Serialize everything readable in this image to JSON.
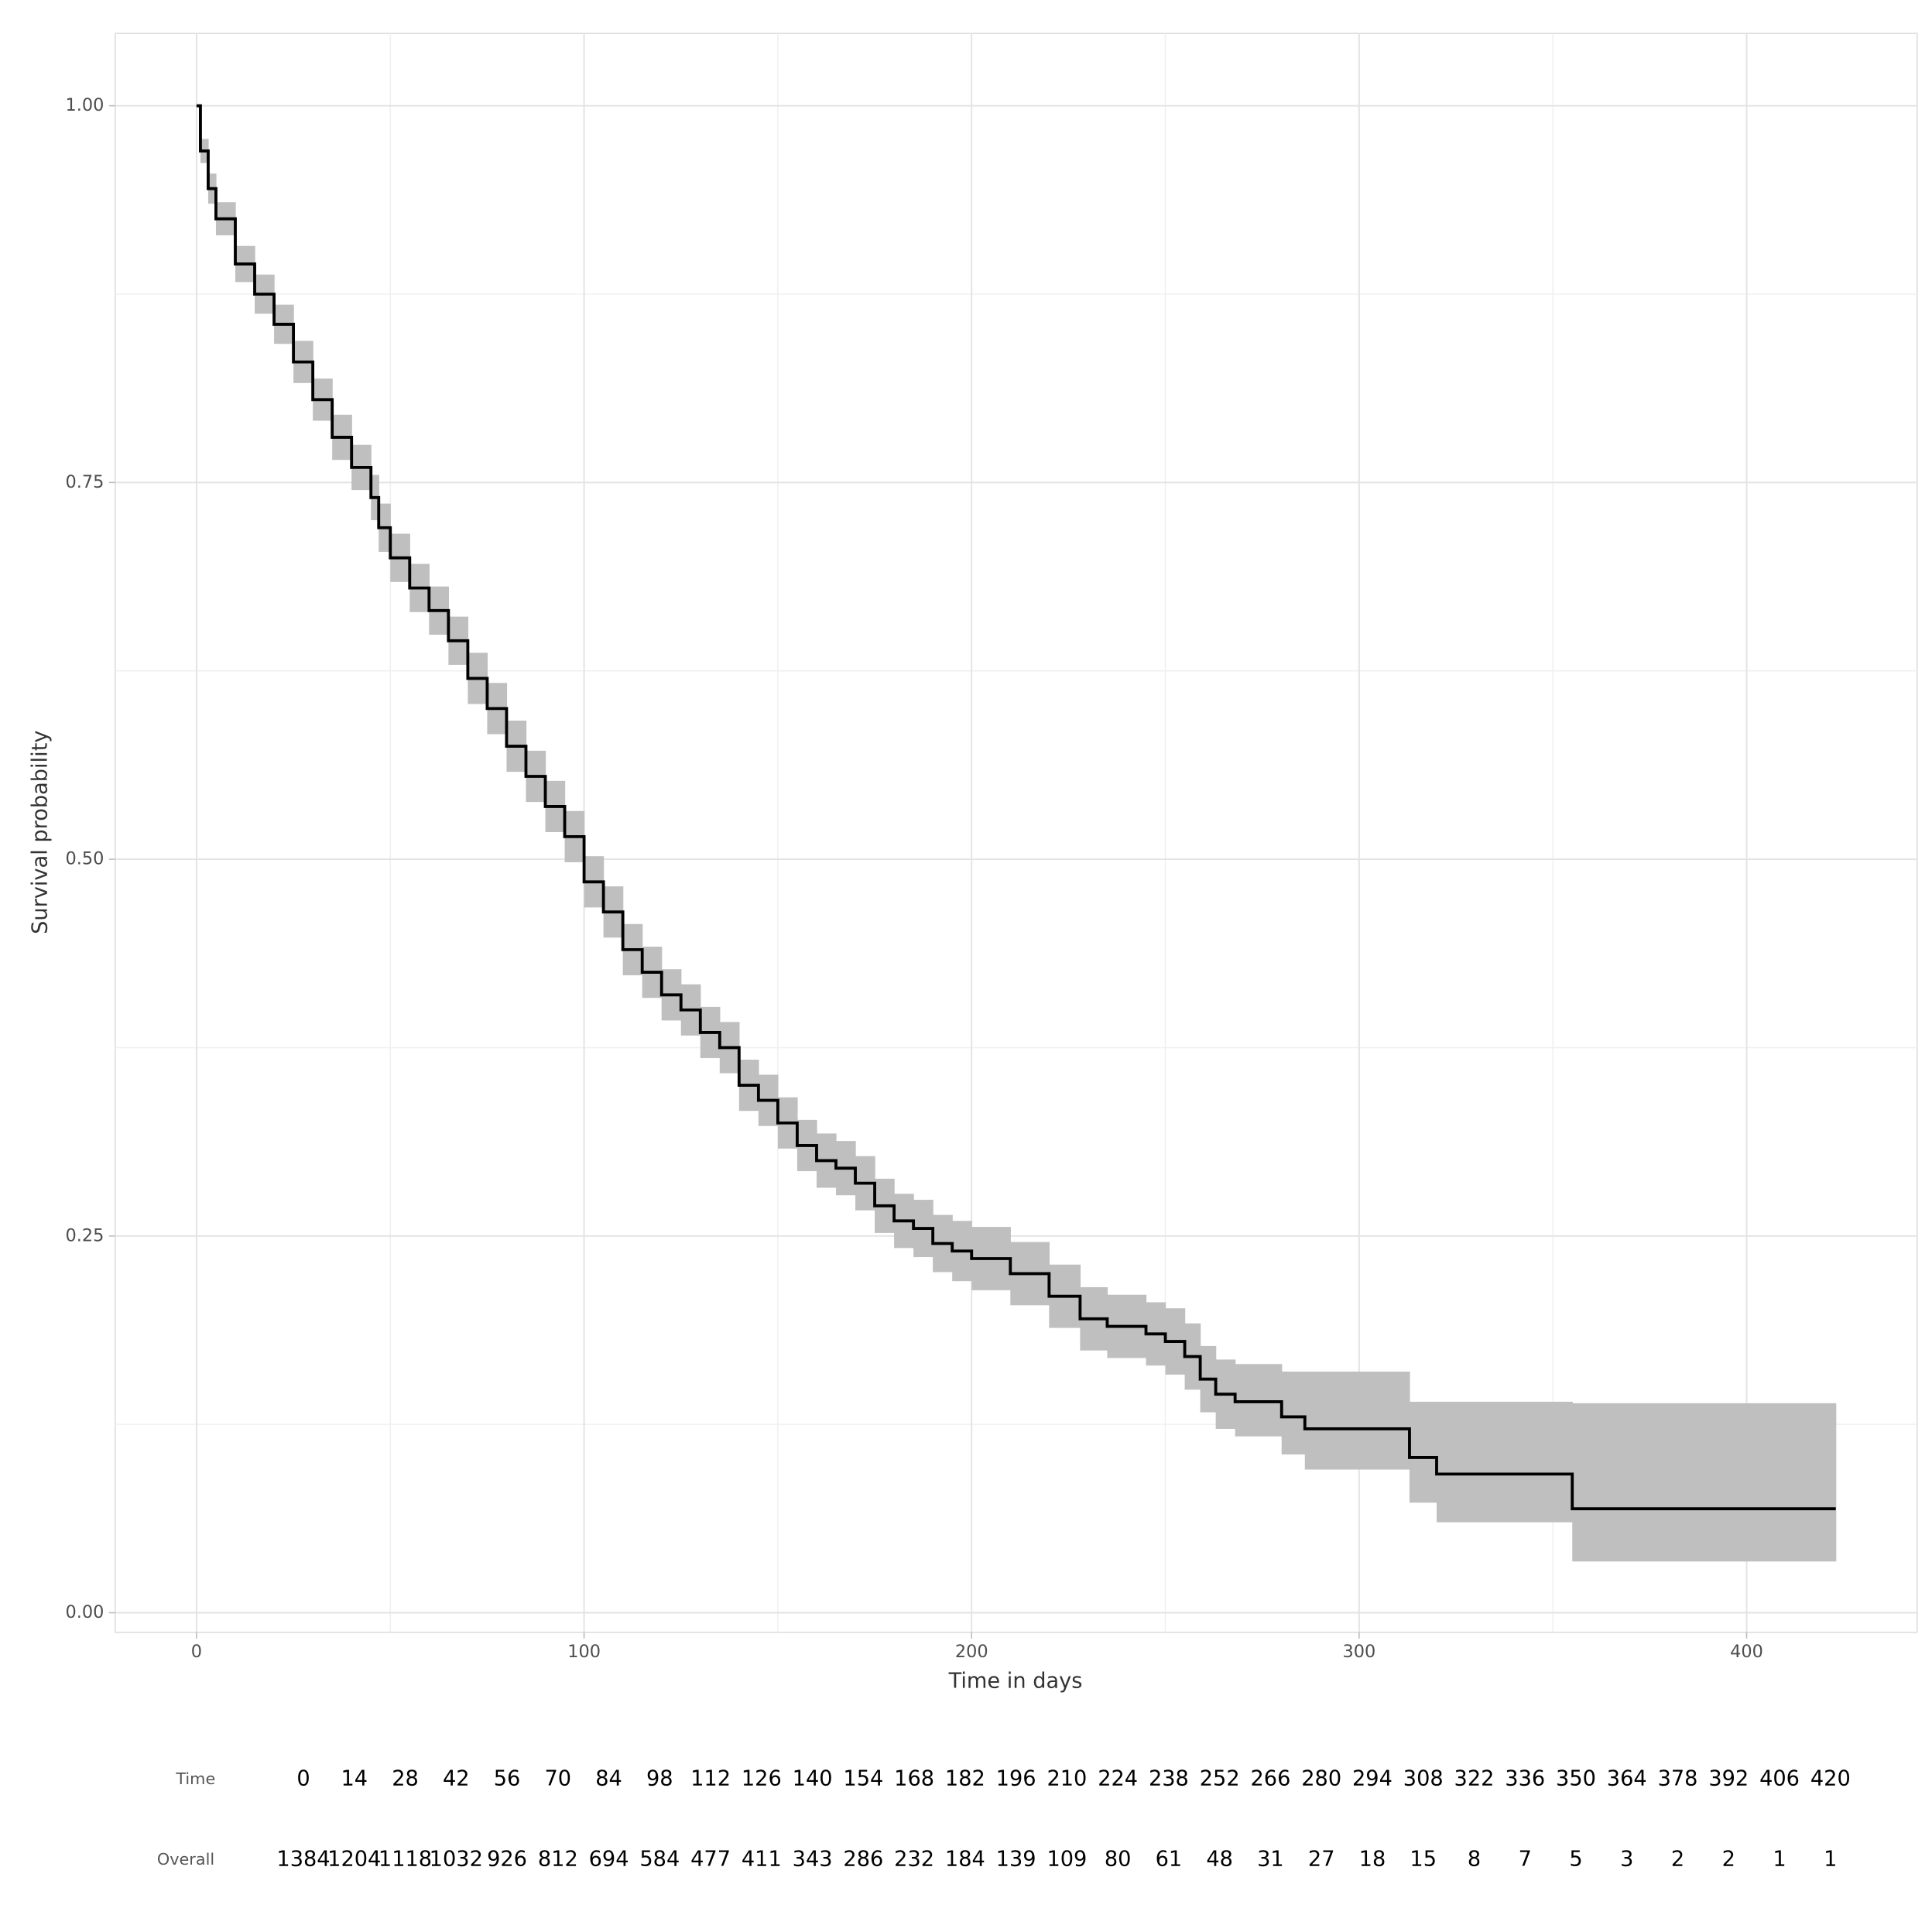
{
  "chart_data": {
    "type": "line",
    "xlabel": "Time in days",
    "ylabel": "Survival probability",
    "x": [
      0,
      1,
      3,
      5,
      10,
      15,
      20,
      25,
      30,
      35,
      40,
      45,
      47,
      50,
      55,
      60,
      65,
      70,
      75,
      80,
      85,
      90,
      95,
      100,
      105,
      110,
      115,
      120,
      125,
      130,
      135,
      140,
      145,
      150,
      155,
      160,
      165,
      170,
      175,
      180,
      185,
      190,
      195,
      200,
      210,
      220,
      228,
      235,
      245,
      250,
      255,
      259,
      263,
      268,
      280,
      286,
      313,
      320,
      355,
      423
    ],
    "values": [
      1,
      0.97,
      0.945,
      0.925,
      0.895,
      0.875,
      0.855,
      0.83,
      0.805,
      0.78,
      0.76,
      0.74,
      0.72,
      0.7,
      0.68,
      0.665,
      0.645,
      0.62,
      0.6,
      0.575,
      0.555,
      0.535,
      0.515,
      0.485,
      0.465,
      0.44,
      0.425,
      0.41,
      0.4,
      0.385,
      0.375,
      0.35,
      0.34,
      0.325,
      0.31,
      0.3,
      0.295,
      0.285,
      0.27,
      0.26,
      0.255,
      0.245,
      0.24,
      0.235,
      0.225,
      0.21,
      0.195,
      0.19,
      0.185,
      0.18,
      0.17,
      0.155,
      0.145,
      0.14,
      0.13,
      0.122,
      0.103,
      0.092,
      0.069,
      0.069
    ],
    "lower": [
      1,
      0.962,
      0.935,
      0.914,
      0.883,
      0.862,
      0.842,
      0.816,
      0.791,
      0.765,
      0.745,
      0.725,
      0.704,
      0.684,
      0.664,
      0.649,
      0.629,
      0.603,
      0.583,
      0.558,
      0.538,
      0.518,
      0.498,
      0.468,
      0.448,
      0.423,
      0.408,
      0.393,
      0.383,
      0.368,
      0.358,
      0.333,
      0.323,
      0.308,
      0.293,
      0.282,
      0.277,
      0.267,
      0.252,
      0.242,
      0.236,
      0.226,
      0.22,
      0.214,
      0.204,
      0.189,
      0.174,
      0.169,
      0.164,
      0.158,
      0.148,
      0.133,
      0.122,
      0.117,
      0.105,
      0.095,
      0.073,
      0.06,
      0.034,
      0.034
    ],
    "upper": [
      1,
      0.978,
      0.955,
      0.936,
      0.907,
      0.888,
      0.868,
      0.844,
      0.819,
      0.795,
      0.775,
      0.755,
      0.736,
      0.716,
      0.696,
      0.681,
      0.661,
      0.637,
      0.617,
      0.592,
      0.572,
      0.552,
      0.532,
      0.502,
      0.482,
      0.457,
      0.442,
      0.427,
      0.417,
      0.402,
      0.392,
      0.367,
      0.357,
      0.342,
      0.327,
      0.318,
      0.313,
      0.303,
      0.288,
      0.278,
      0.274,
      0.264,
      0.26,
      0.256,
      0.246,
      0.231,
      0.216,
      0.211,
      0.206,
      0.202,
      0.192,
      0.177,
      0.168,
      0.165,
      0.16,
      0.16,
      0.14,
      0.14,
      0.139,
      0.139
    ],
    "color": "#000000",
    "band_color": "#bfbfbf",
    "xlim": [
      -21,
      444
    ],
    "ylim": [
      -0.013,
      1.048
    ],
    "xticks": [
      0,
      100,
      200,
      300,
      400
    ],
    "yticks": [
      {
        "value": 0,
        "label": "0.00"
      },
      0.25,
      {
        "value": 0.5,
        "label": "0.50"
      },
      0.75,
      {
        "value": 1,
        "label": "1.00"
      }
    ],
    "grid": true
  },
  "risk_table": {
    "time_label": "Time",
    "group": "Overall",
    "times": [
      0,
      14,
      28,
      42,
      56,
      70,
      84,
      98,
      112,
      126,
      140,
      154,
      168,
      182,
      196,
      210,
      224,
      238,
      252,
      266,
      280,
      294,
      308,
      322,
      336,
      350,
      364,
      378,
      392,
      406,
      420
    ],
    "counts": [
      1384,
      1204,
      1118,
      1032,
      926,
      812,
      694,
      584,
      477,
      411,
      343,
      286,
      232,
      184,
      139,
      109,
      80,
      61,
      48,
      31,
      27,
      18,
      15,
      8,
      7,
      5,
      3,
      2,
      2,
      1,
      1
    ]
  }
}
